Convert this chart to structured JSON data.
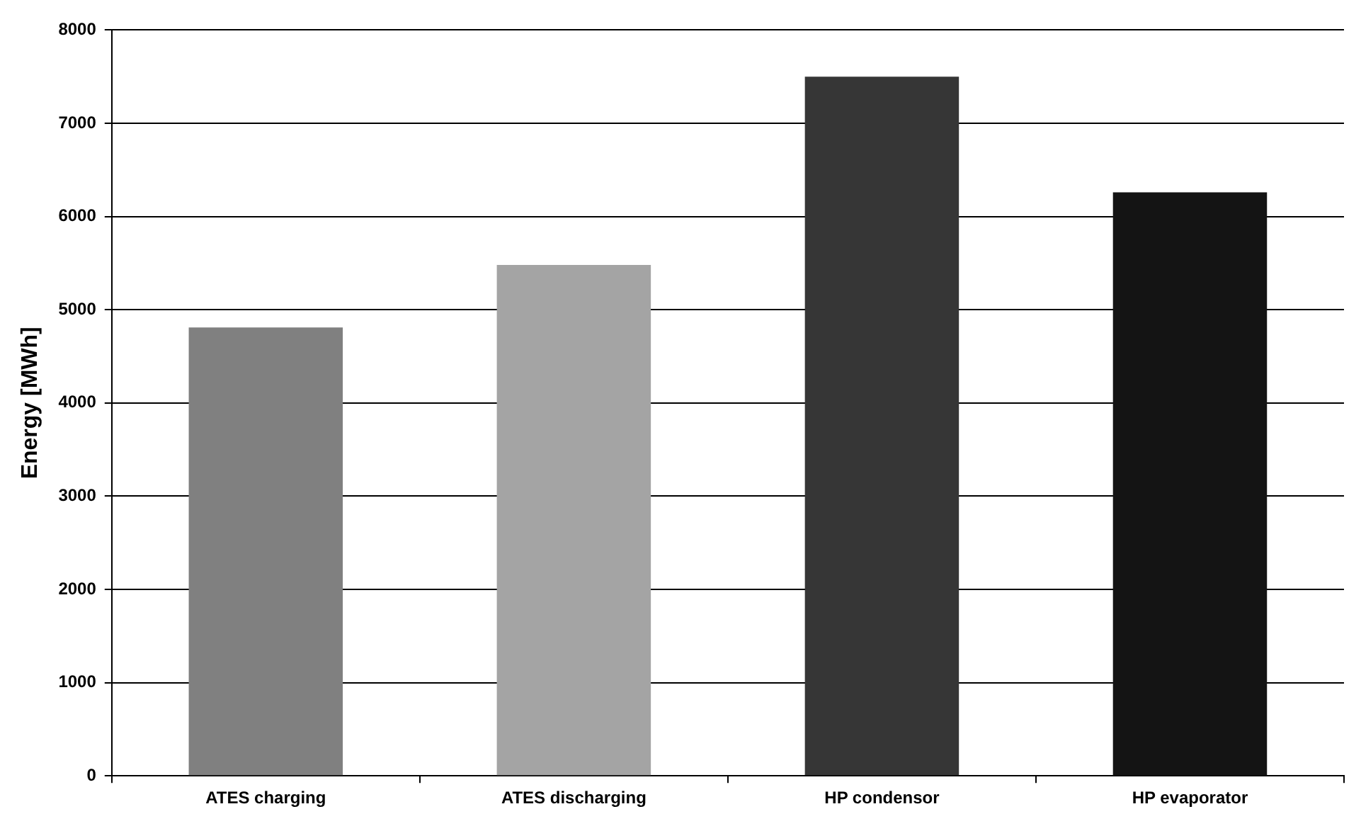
{
  "chart_data": {
    "type": "bar",
    "ylabel": "Energy [MWh]",
    "categories": [
      "ATES charging",
      "ATES discharging",
      "HP condensor",
      "HP evaporator"
    ],
    "values": [
      4810,
      5480,
      7500,
      6260
    ],
    "colors": [
      "#808080",
      "#a4a4a4",
      "#363636",
      "#141414"
    ],
    "ylim": [
      0,
      8000
    ],
    "yticks": [
      0,
      1000,
      2000,
      3000,
      4000,
      5000,
      6000,
      7000,
      8000
    ],
    "grid": "y",
    "legend": false
  }
}
